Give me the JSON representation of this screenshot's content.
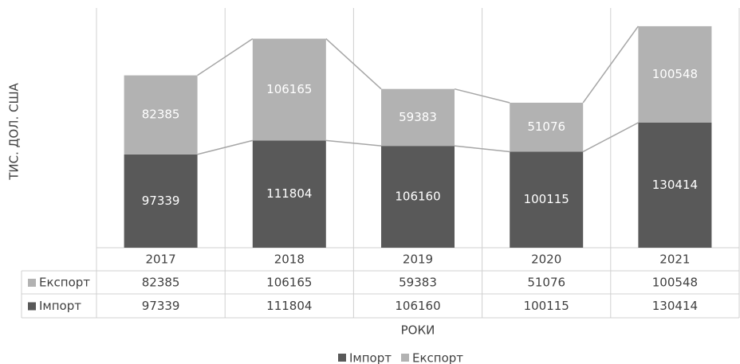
{
  "chart_data": {
    "type": "stacked_bar",
    "y_axis_label": "ТИС. ДОЛ. США",
    "x_axis_label": "РОКИ",
    "categories": [
      "2017",
      "2018",
      "2019",
      "2020",
      "2021"
    ],
    "series": [
      {
        "name": "Імпорт",
        "color": "#595959",
        "values": [
          97339,
          111804,
          106160,
          100115,
          130414
        ]
      },
      {
        "name": "Експорт",
        "color": "#b2b2b2",
        "values": [
          82385,
          106165,
          59383,
          51076,
          100548
        ]
      }
    ],
    "ylim": [
      0,
      250000
    ]
  }
}
